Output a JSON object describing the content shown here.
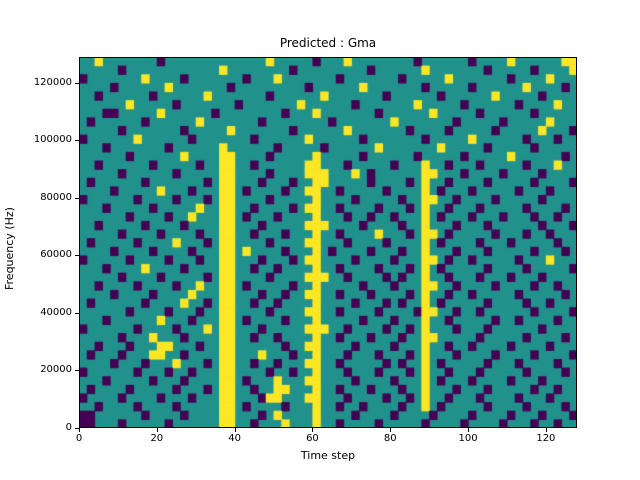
{
  "figure": {
    "title": "Predicted : Gma",
    "xlabel": "Time step",
    "ylabel": "Frequency (Hz)"
  },
  "chart_data": {
    "type": "heatmap",
    "title": "Predicted : Gma",
    "xlabel": "Time step",
    "ylabel": "Frequency (Hz)",
    "xlim": [
      0,
      128
    ],
    "ylim": [
      0,
      129000
    ],
    "x_ticks": [
      0,
      20,
      40,
      60,
      80,
      100,
      120
    ],
    "y_ticks": [
      0,
      20000,
      40000,
      60000,
      80000,
      100000,
      120000
    ],
    "grid": false,
    "legend": "none",
    "colormap": "viridis (3 discrete levels)",
    "value_colors": {
      "mid": "#21918c",
      "low": "#440154",
      "high": "#fde725"
    },
    "cell_encoding": {
      ".": "mid",
      "P": "low",
      "Y": "high"
    },
    "grid_cols": 64,
    "grid_rows": 43,
    "rows": [
      [
        "..Y.....",
        "..P.....",
        "........",
        "Y.....P.",
        "..Y.....",
        "...P....",
        "..P....Y",
        "......YY"
      ],
      [
        ".....P..",
        "........",
        "..Y.....",
        "...P....",
        ".....P..",
        "....Y...",
        "....P...",
        "..P....Y"
      ],
      [
        "P.......",
        "Y....P..",
        ".....P..",
        ".Y......",
        ".P......",
        ".P.....Y",
        ".......P",
        "....Y..."
      ],
      [
        "....P...",
        "...Y....",
        "...P....",
        ".....P..",
        "....Y...",
        "....P...",
        "..P.....",
        ".Y....P."
      ],
      [
        "..P.....",
        ".P......",
        "Y.......",
        "P......Y",
        ".......P",
        "......P.",
        ".....Y..",
        "...P...."
      ],
      [
        "......Y.",
        "....P...",
        "....P...",
        "....Y...",
        "...P....",
        "...Y....",
        ".P......",
        "P....Y.."
      ],
      [
        "...PP...",
        "..Y.....",
        ".P......",
        "..P...Y.",
        "......P.",
        ".....Y..",
        "...P....",
        "..P....."
      ],
      [
        ".P......",
        "P......Y",
        ".......P",
        "........",
        "P.......",
        "Y.......",
        "P.....P.",
        "....Y..."
      ],
      [
        ".....P..",
        ".....P..",
        "...Y....",
        "...P....",
        "..Y.....",
        "..P....P",
        ".....P..",
        "...Y...P"
      ],
      [
        "P......Y",
        "......P.",
        "......P.",
        ".....Y..",
        "....P...",
        "....P...",
        "..Y.....",
        ".P...P.."
      ],
      [
        "...P....",
        "...P....",
        "..Y.....",
        ".P.....P",
        "......Y.",
        "......Y.",
        "....P...",
        "..P....."
      ],
      [
        "......P.",
        ".....Y..",
        "..YY....",
        "P.....Y.",
        "....P...",
        "...P....",
        ".P.....Y",
        "......P."
      ],
      [
        "..P.....",
        ".P.....P",
        "..YY..P.",
        ".....YY.",
        "..P.....",
        "P...Y..P",
        "...P....",
        ".P...Y.."
      ],
      [
        ".....P..",
        "....P...",
        "..YY....",
        "P....YYY",
        "...Y.P..",
        "....YY..",
        ".P....P.",
        "...P...."
      ],
      [
        ".P......",
        "P.......",
        "P.YY...P",
        "...P..YY",
        ".....P..",
        "..P.Y..P",
        "....P...",
        "..P....P"
      ],
      [
        "....P...",
        "..Y...P.",
        "..YY.P..",
        "..P..YY.",
        ".P.....P",
        "....Y.P.",
        "..P.....",
        "P...P..."
      ],
      [
        "P......P",
        "....P...",
        "P.YY....",
        "P.....Y.",
        "...P....",
        ".P..YY..",
        "P....P..",
        "...P...."
      ],
      [
        "...P....",
        ".P.....Y",
        "..YY..P.",
        "...P.YY.",
        ".P....P.",
        "..P.Y..P",
        "...P....",
        ".P....P."
      ],
      [
        "......P.",
        "...P..Y.",
        "..YY.P..",
        ".P....Y.",
        "..P..P..",
        "P...Y.P.",
        "..P...P.",
        "..P..P.."
      ],
      [
        "..P.....",
        "P....P..",
        "..YY...P",
        ".....YYY",
        "....P...",
        ".P..Y...",
        "P...P...",
        "...P...P"
      ],
      [
        ".....P..",
        "..P....P",
        "..YY..P.",
        "..P...Y.",
        ".P....Y.",
        "..P.YY.P",
        ".....P..",
        ".P..P..."
      ],
      [
        ".P.....P",
        "....Y...",
        "P.YY....",
        "P....YY.",
        "..P....P",
        "....Y.P.",
        "...P...P",
        ".....P.."
      ],
      [
        "....P...",
        ".P....P.",
        "..YY.Y..",
        "..P...Y.",
        "P....P..",
        ".P..Y...",
        "P...P...",
        "..P...P."
      ],
      [
        "P.....P.",
        "...P...P",
        "..YY...P",
        "...P.YY.",
        "...P....",
        "P...YY.P",
        "..P.....",
        "P...Y..."
      ],
      [
        "...P....",
        "Y....P..",
        "..YY..P.",
        ".P....Y.",
        ".P....P.",
        "..P.Y.P.",
        "....P...",
        ".P.....P"
      ],
      [
        ".....P..",
        "..P.....",
        "P.YY....",
        "P....YYY",
        "..P....P",
        ".P..Y..P",
        "...P...P",
        "...P...."
      ],
      [
        "..P....P",
        "....P..Y",
        "..YY.P..",
        "...P..Y.",
        "....P...",
        "P...YY..",
        "P....P..",
        "..P..P.."
      ],
      [
        "....P...",
        ".P....Y.",
        "..YY...P",
        "..P..YY.",
        ".P...P..",
        "..P.Y..P",
        "..P.....",
        "P.....P."
      ],
      [
        ".P......",
        "P....Y..",
        "P.YY..P.",
        ".P....Y.",
        "...P...P",
        ".P..Y.P.",
        "....P...",
        ".P..P..."
      ],
      [
        "......P.",
        "...P...P",
        "..YY....",
        "P....YY.",
        ".P....P.",
        "...PYY..",
        "P..P....",
        "..P....P"
      ],
      [
        "...P....",
        "..Y...P.",
        "..YY.P..",
        "..P...Y.",
        "....P...",
        "P...Y..P",
        ".....P..",
        "P....P.."
      ],
      [
        "P......P",
        "....P...",
        "Y.YY...P",
        ".....YYY",
        "..P....P",
        "..P.Y...",
        "P...P...",
        "...P...."
      ],
      [
        ".....P..",
        ".Y...P..",
        "..YY..P.",
        ".P....Y.",
        ".P...P..",
        ".P..YY..",
        "...P....",
        ".P....P."
      ],
      [
        "..P...P.",
        "..YY...P",
        "..YY....",
        "..P..YY.",
        "...P....",
        "P...Y..P",
        "..P....P",
        "....P..."
      ],
      [
        ".P...P..",
        ".YY..P..",
        "..YY...Y",
        "...P..Y.",
        "..P...P.",
        "..P.Y...",
        "P....P..",
        "..P....P"
      ],
      [
        "....P...",
        "P...Y...",
        "P.YY..P.",
        ".P...YY.",
        ".P.....P",
        ".P..Y.P.",
        "....P...",
        "P....P.."
      ],
      [
        "P......P",
        "...P..P.",
        "..YY....",
        "P..P..Y.",
        "..P...P.",
        "..P.Y..P",
        "...P....",
        ".P....P."
      ],
      [
        "...P....",
        ".P...P..",
        "..YY.P..",
        ".Y...YY.",
        "...P....",
        "P...Y.P.",
        "..P....P",
        "...P...."
      ],
      [
        ".P....P.",
        "....P...",
        "P.YY..P.",
        ".YY...Y.",
        ".P...P..",
        ".P..Y...",
        "P...P...",
        "..P..P.."
      ],
      [
        "P....P..",
        "..P...P.",
        "..YY...P",
        "YY...YY.",
        "..P....P",
        "..P.Y..P",
        "...P....",
        "P...P..."
      ],
      [
        "..P....P",
        "....P...",
        "..YY.P..",
        "..P...Y.",
        ".P..P...",
        ".P..Y.P.",
        "....P...",
        ".P....P."
      ],
      [
        "PP......",
        "P....P..",
        "..YY...P",
        ".Y....Y.",
        "...P....",
        "P....P..",
        "..P....P",
        "...P...P"
      ],
      [
        "PP...P..",
        "...P....",
        "..YY..P.",
        "..Y...Y.",
        ".P....P.",
        "....P...",
        ".P....P.",
        "..P..P.."
      ]
    ]
  }
}
